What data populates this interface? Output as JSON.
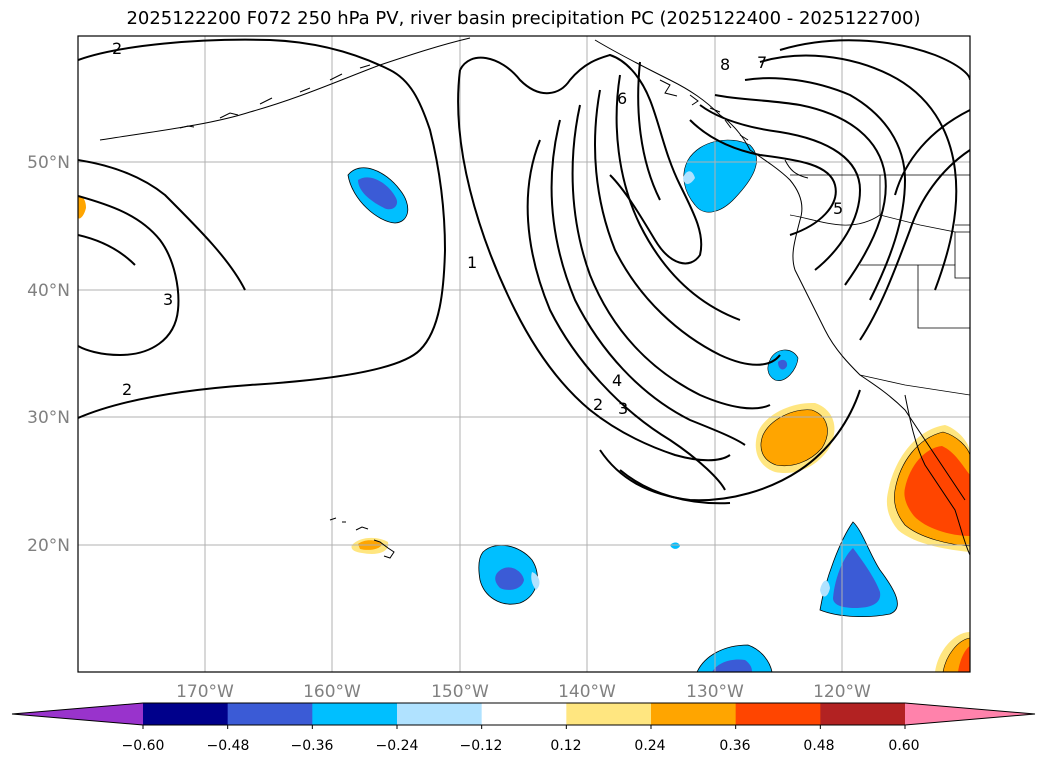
{
  "title": "2025122200 F072 250 hPa PV, river basin precipitation PC (2025122400 - 2025122700)",
  "lat_labels": [
    "50°N",
    "40°N",
    "30°N",
    "20°N"
  ],
  "lon_labels": [
    "170°W",
    "160°W",
    "150°W",
    "140°W",
    "130°W",
    "120°W"
  ],
  "contour_labels": [
    "2",
    "3",
    "2",
    "1",
    "6",
    "8",
    "7",
    "5",
    "4",
    "2",
    "3"
  ],
  "colorbar": {
    "ticks": [
      "−0.60",
      "−0.48",
      "−0.36",
      "−0.24",
      "−0.12",
      "0.12",
      "0.24",
      "0.36",
      "0.48",
      "0.60"
    ],
    "colors": [
      "#9933cc",
      "#00008b",
      "#3b5bd6",
      "#00bfff",
      "#b0e2ff",
      "#ffffff",
      "#ffe680",
      "#ffa500",
      "#ff4500",
      "#b22222",
      "#ff82ab"
    ]
  },
  "palette": {
    "grid": "#b0b0b0",
    "tick_label": "#808080",
    "contour": "#000000"
  }
}
